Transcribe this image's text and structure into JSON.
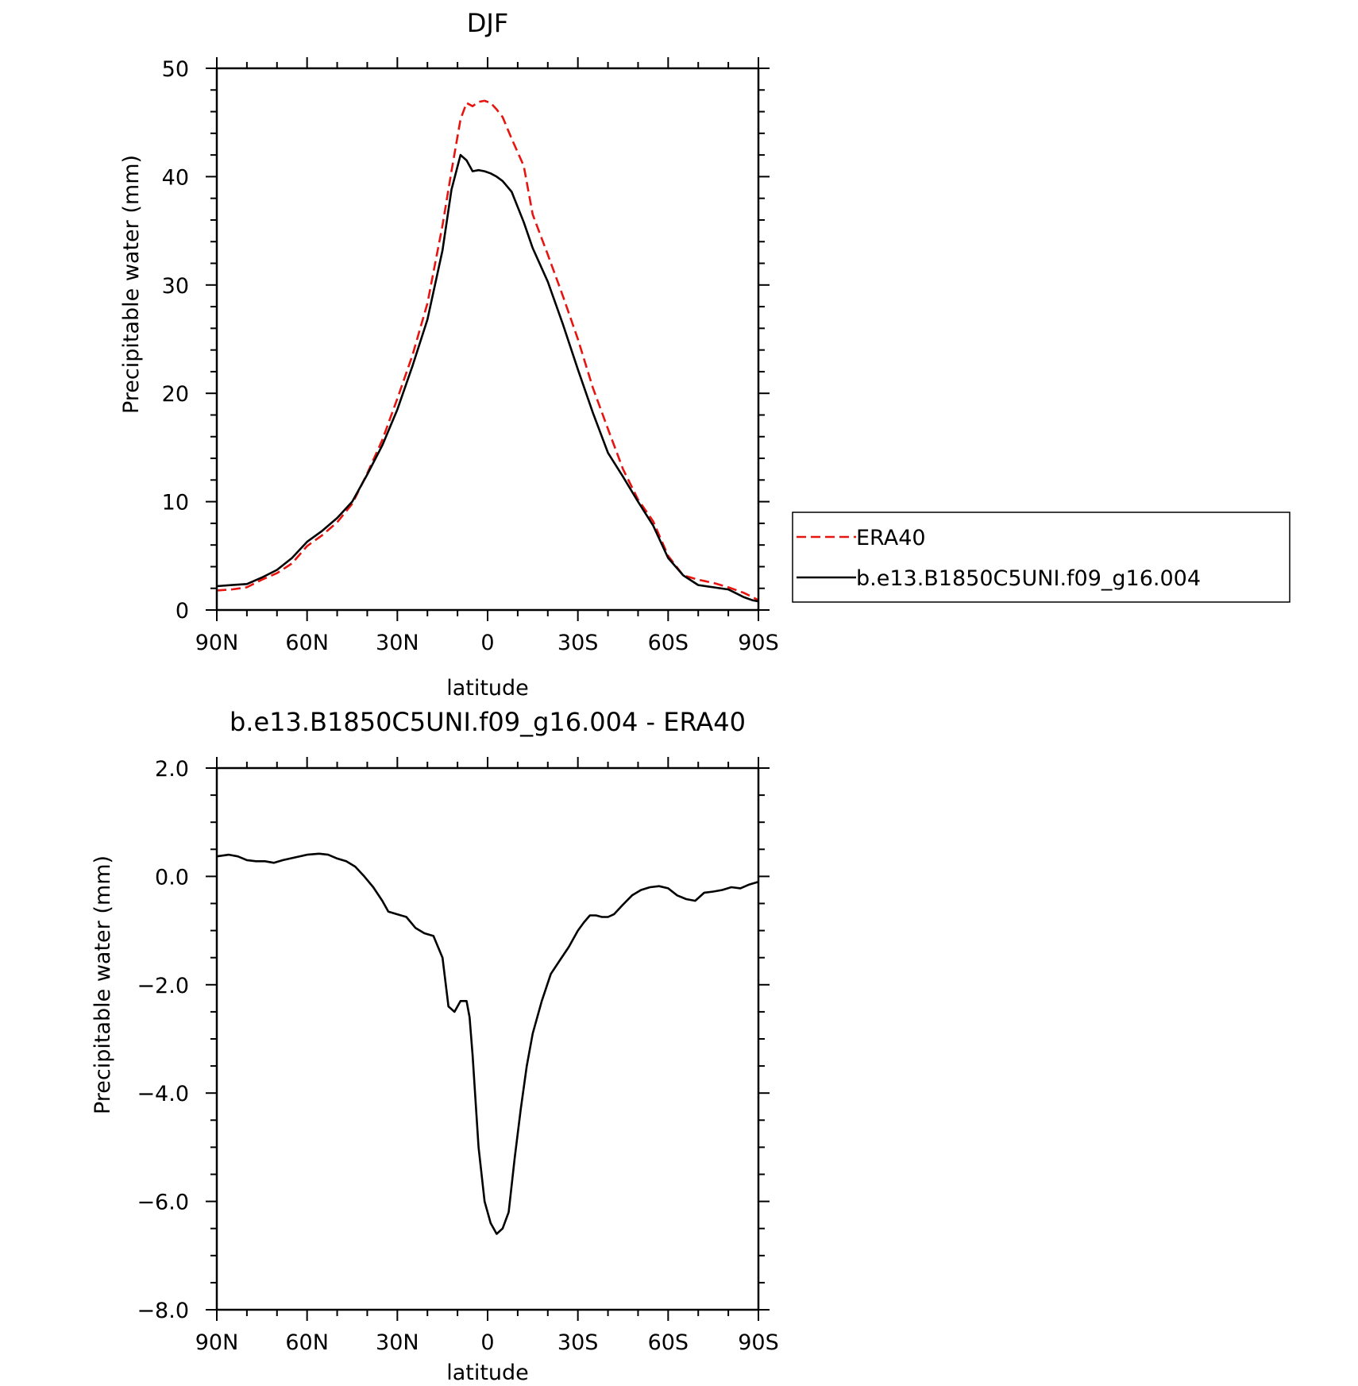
{
  "chart_data": [
    {
      "type": "line",
      "title": "DJF",
      "xlabel": "latitude",
      "ylabel": "Precipitable water (mm)",
      "x_tick_labels": [
        "90N",
        "60N",
        "30N",
        "0",
        "30S",
        "60S",
        "90S"
      ],
      "x_ticks": [
        90,
        60,
        30,
        0,
        -30,
        -60,
        -90
      ],
      "xlim": [
        90,
        -90
      ],
      "y_tick_labels": [
        "0",
        "10",
        "20",
        "30",
        "40",
        "50"
      ],
      "y_ticks": [
        0,
        10,
        20,
        30,
        40,
        50
      ],
      "ylim": [
        0,
        50
      ],
      "legend": "right",
      "series": [
        {
          "name": "ERA40",
          "color": "#e8140f",
          "style": "dashed",
          "x": [
            90,
            85,
            80,
            75,
            70,
            65,
            60,
            55,
            50,
            45,
            40,
            35,
            30,
            25,
            20,
            15,
            12,
            9,
            7,
            5,
            3,
            1,
            -1,
            -3,
            -5,
            -8,
            -12,
            -15,
            -20,
            -25,
            -30,
            -35,
            -40,
            -45,
            -50,
            -55,
            -60,
            -65,
            -70,
            -75,
            -80,
            -85,
            -88,
            -90
          ],
          "y": [
            1.8,
            1.9,
            2.1,
            2.8,
            3.4,
            4.3,
            5.9,
            6.9,
            8.1,
            9.8,
            12.6,
            15.7,
            19.5,
            23.5,
            28.3,
            35.5,
            40.5,
            45.3,
            46.8,
            46.5,
            46.9,
            47.0,
            46.8,
            46.2,
            45.5,
            43.5,
            41.0,
            36.5,
            32.8,
            29.0,
            25.0,
            20.5,
            16.7,
            13.0,
            10.2,
            8.2,
            5.0,
            3.2,
            2.8,
            2.5,
            2.1,
            1.6,
            1.2,
            0.9
          ]
        },
        {
          "name": "b.e13.B1850C5UNI.f09_g16.004",
          "color": "#000000",
          "style": "solid",
          "x": [
            90,
            85,
            80,
            75,
            70,
            65,
            60,
            55,
            50,
            45,
            40,
            35,
            30,
            25,
            20,
            15,
            12,
            9,
            7,
            5,
            3,
            1,
            -1,
            -3,
            -5,
            -8,
            -12,
            -15,
            -20,
            -25,
            -30,
            -35,
            -40,
            -45,
            -50,
            -55,
            -60,
            -65,
            -70,
            -75,
            -80,
            -85,
            -88,
            -90
          ],
          "y": [
            2.2,
            2.3,
            2.4,
            3.0,
            3.7,
            4.8,
            6.3,
            7.3,
            8.5,
            10.0,
            12.5,
            15.2,
            18.5,
            22.5,
            26.8,
            33.2,
            38.8,
            42.0,
            41.5,
            40.5,
            40.6,
            40.5,
            40.3,
            40.0,
            39.6,
            38.6,
            35.8,
            33.4,
            30.3,
            26.4,
            22.2,
            18.2,
            14.5,
            12.3,
            10.0,
            7.8,
            4.8,
            3.2,
            2.3,
            2.1,
            1.9,
            1.2,
            0.9,
            0.8
          ]
        }
      ]
    },
    {
      "type": "line",
      "title": "b.e13.B1850C5UNI.f09_g16.004 - ERA40",
      "xlabel": "latitude",
      "ylabel": "Precipitable water (mm)",
      "x_tick_labels": [
        "90N",
        "60N",
        "30N",
        "0",
        "30S",
        "60S",
        "90S"
      ],
      "x_ticks": [
        90,
        60,
        30,
        0,
        -30,
        -60,
        -90
      ],
      "xlim": [
        90,
        -90
      ],
      "y_tick_labels": [
        "2.0",
        "0.0",
        "−2.0",
        "−4.0",
        "−6.0",
        "−8.0"
      ],
      "y_ticks": [
        2,
        0,
        -2,
        -4,
        -6,
        -8
      ],
      "ylim": [
        -8,
        2
      ],
      "series": [
        {
          "color": "#000000",
          "style": "solid",
          "x": [
            90,
            86,
            83,
            80,
            77,
            74,
            71,
            68,
            64,
            60,
            56,
            53,
            50,
            47,
            44,
            41,
            38,
            35,
            33,
            30,
            27,
            24,
            21,
            18,
            15,
            13,
            11,
            9,
            7,
            6,
            5,
            3,
            1,
            -1,
            -3,
            -5,
            -7,
            -9,
            -11,
            -13,
            -15,
            -18,
            -21,
            -24,
            -27,
            -30,
            -32,
            -34,
            -36,
            -38,
            -40,
            -42,
            -45,
            -48,
            -51,
            -54,
            -57,
            -60,
            -63,
            -66,
            -69,
            -72,
            -75,
            -78,
            -81,
            -84,
            -87,
            -90
          ],
          "y": [
            0.37,
            0.4,
            0.37,
            0.3,
            0.28,
            0.28,
            0.25,
            0.3,
            0.35,
            0.4,
            0.42,
            0.4,
            0.33,
            0.28,
            0.18,
            0.0,
            -0.2,
            -0.45,
            -0.65,
            -0.7,
            -0.75,
            -0.95,
            -1.05,
            -1.1,
            -1.5,
            -2.4,
            -2.5,
            -2.3,
            -2.3,
            -2.6,
            -3.3,
            -5.0,
            -6.0,
            -6.4,
            -6.6,
            -6.5,
            -6.2,
            -5.2,
            -4.3,
            -3.5,
            -2.9,
            -2.3,
            -1.8,
            -1.55,
            -1.3,
            -1.0,
            -0.85,
            -0.72,
            -0.72,
            -0.75,
            -0.75,
            -0.7,
            -0.52,
            -0.35,
            -0.25,
            -0.2,
            -0.18,
            -0.22,
            -0.35,
            -0.42,
            -0.45,
            -0.3,
            -0.28,
            -0.25,
            -0.2,
            -0.22,
            -0.15,
            -0.1
          ]
        }
      ]
    }
  ]
}
